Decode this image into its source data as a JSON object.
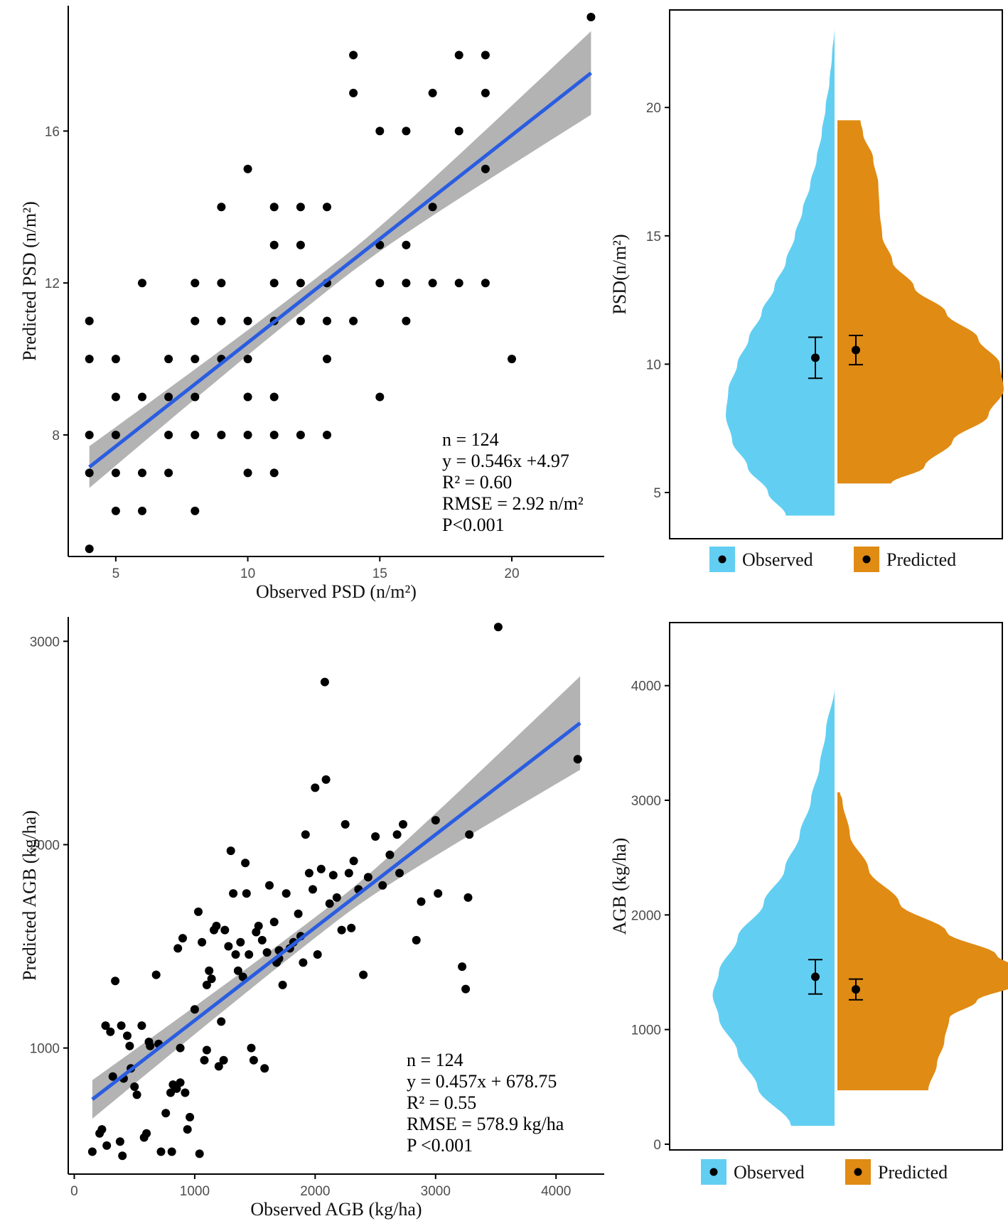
{
  "chart_data": [
    {
      "type": "scatter",
      "panel": "top-left",
      "xlabel": "Observed PSD (n/m²)",
      "ylabel": "Predicted PSD (n/m²)",
      "xlim": [
        3.2,
        23.5
      ],
      "ylim": [
        4.8,
        19.3
      ],
      "xticks": [
        5,
        10,
        15,
        20
      ],
      "yticks": [
        8,
        12,
        16
      ],
      "grid": false,
      "points": [
        [
          4,
          11
        ],
        [
          4,
          10
        ],
        [
          4,
          8
        ],
        [
          4,
          7
        ],
        [
          4,
          5
        ],
        [
          5,
          10
        ],
        [
          5,
          9
        ],
        [
          5,
          8
        ],
        [
          5,
          7
        ],
        [
          5,
          6
        ],
        [
          6,
          12
        ],
        [
          6,
          9
        ],
        [
          6,
          7
        ],
        [
          6,
          6
        ],
        [
          7,
          10
        ],
        [
          7,
          9
        ],
        [
          7,
          8
        ],
        [
          7,
          7
        ],
        [
          8,
          12
        ],
        [
          8,
          11
        ],
        [
          8,
          10
        ],
        [
          8,
          9
        ],
        [
          8,
          8
        ],
        [
          8,
          6
        ],
        [
          9,
          14
        ],
        [
          9,
          12
        ],
        [
          9,
          11
        ],
        [
          9,
          10
        ],
        [
          9,
          8
        ],
        [
          10,
          15
        ],
        [
          10,
          11
        ],
        [
          10,
          10
        ],
        [
          10,
          9
        ],
        [
          10,
          8
        ],
        [
          10,
          7
        ],
        [
          11,
          14
        ],
        [
          11,
          13
        ],
        [
          11,
          12
        ],
        [
          11,
          11
        ],
        [
          11,
          9
        ],
        [
          11,
          8
        ],
        [
          11,
          7
        ],
        [
          12,
          14
        ],
        [
          12,
          13
        ],
        [
          12,
          12
        ],
        [
          12,
          11
        ],
        [
          12,
          8
        ],
        [
          13,
          14
        ],
        [
          13,
          12
        ],
        [
          13,
          11
        ],
        [
          13,
          10
        ],
        [
          13,
          8
        ],
        [
          14,
          18
        ],
        [
          14,
          17
        ],
        [
          14,
          11
        ],
        [
          15,
          16
        ],
        [
          15,
          13
        ],
        [
          15,
          12
        ],
        [
          15,
          9
        ],
        [
          16,
          16
        ],
        [
          16,
          13
        ],
        [
          16,
          12
        ],
        [
          16,
          11
        ],
        [
          17,
          17
        ],
        [
          17,
          14
        ],
        [
          17,
          12
        ],
        [
          18,
          18
        ],
        [
          18,
          16
        ],
        [
          18,
          12
        ],
        [
          19,
          18
        ],
        [
          19,
          17
        ],
        [
          19,
          15
        ],
        [
          19,
          12
        ],
        [
          20,
          10
        ],
        [
          23,
          19
        ]
      ],
      "fit": {
        "slope": 0.546,
        "intercept": 4.97,
        "x_range": [
          4,
          23
        ],
        "ci_halfwidth_at_ends": [
          0.55,
          1.1
        ],
        "ci_halfwidth_at_center": 0.28,
        "line_color": "#2a5de0",
        "band_color": "#b3b3b3"
      },
      "annotations": [
        "n = 124",
        "y = 0.546x +4.97",
        "R² = 0.60",
        "RMSE = 2.92 n/m²",
        "P<0.001"
      ]
    },
    {
      "type": "violin",
      "panel": "top-right",
      "ylabel": "PSD(n/m²)",
      "ylim": [
        3.2,
        23.8
      ],
      "yticks": [
        5,
        10,
        15,
        20
      ],
      "legend": [
        "Observed",
        "Predicted"
      ],
      "colors": {
        "observed": "#62cff2",
        "predicted": "#e08b14"
      },
      "observed": {
        "min": 4.1,
        "max": 23.1,
        "mean": 10.25,
        "err_low": 9.45,
        "err_high": 11.05,
        "profile": [
          [
            4.1,
            0.38
          ],
          [
            5,
            0.52
          ],
          [
            6,
            0.68
          ],
          [
            7,
            0.8
          ],
          [
            8,
            0.85
          ],
          [
            9,
            0.83
          ],
          [
            10,
            0.76
          ],
          [
            11,
            0.67
          ],
          [
            12,
            0.57
          ],
          [
            13,
            0.47
          ],
          [
            14,
            0.38
          ],
          [
            15,
            0.31
          ],
          [
            16,
            0.25
          ],
          [
            17,
            0.19
          ],
          [
            18,
            0.14
          ],
          [
            19,
            0.1
          ],
          [
            20,
            0.07
          ],
          [
            21,
            0.04
          ],
          [
            22,
            0.02
          ],
          [
            23.1,
            0.0
          ]
        ]
      },
      "predicted": {
        "min": 5.35,
        "max": 19.5,
        "mean": 10.55,
        "err_low": 9.98,
        "err_high": 11.12,
        "profile": [
          [
            5.35,
            0.42
          ],
          [
            6,
            0.68
          ],
          [
            7,
            0.9
          ],
          [
            8,
            1.18
          ],
          [
            9,
            1.3
          ],
          [
            10,
            1.27
          ],
          [
            11,
            1.1
          ],
          [
            12,
            0.85
          ],
          [
            13,
            0.6
          ],
          [
            14,
            0.43
          ],
          [
            15,
            0.35
          ],
          [
            16,
            0.33
          ],
          [
            17,
            0.32
          ],
          [
            18,
            0.28
          ],
          [
            19,
            0.2
          ],
          [
            19.5,
            0.18
          ]
        ]
      }
    },
    {
      "type": "scatter",
      "panel": "bottom-left",
      "xlabel": "Observed AGB (kg/ha)",
      "ylabel": "Predicted AGB (kg/ha)",
      "xlim": [
        -50,
        4400
      ],
      "ylim": [
        380,
        3120
      ],
      "xticks": [
        0,
        1000,
        2000,
        3000,
        4000
      ],
      "yticks": [
        1000,
        2000,
        3000
      ],
      "grid": false,
      "points": [
        [
          150,
          490
        ],
        [
          210,
          580
        ],
        [
          230,
          600
        ],
        [
          270,
          520
        ],
        [
          300,
          1080
        ],
        [
          320,
          860
        ],
        [
          340,
          1330
        ],
        [
          380,
          540
        ],
        [
          390,
          1110
        ],
        [
          400,
          470
        ],
        [
          410,
          850
        ],
        [
          440,
          1060
        ],
        [
          460,
          1010
        ],
        [
          470,
          900
        ],
        [
          500,
          810
        ],
        [
          520,
          770
        ],
        [
          560,
          1110
        ],
        [
          580,
          560
        ],
        [
          600,
          580
        ],
        [
          620,
          1030
        ],
        [
          630,
          1010
        ],
        [
          680,
          1360
        ],
        [
          720,
          490
        ],
        [
          760,
          680
        ],
        [
          800,
          780
        ],
        [
          810,
          490
        ],
        [
          820,
          820
        ],
        [
          850,
          800
        ],
        [
          860,
          1490
        ],
        [
          880,
          830
        ],
        [
          900,
          1540
        ],
        [
          920,
          780
        ],
        [
          940,
          600
        ],
        [
          960,
          660
        ],
        [
          1000,
          1190
        ],
        [
          1030,
          1670
        ],
        [
          1040,
          480
        ],
        [
          1060,
          1520
        ],
        [
          1080,
          940
        ],
        [
          1100,
          1310
        ],
        [
          1120,
          1380
        ],
        [
          1140,
          1340
        ],
        [
          1160,
          1580
        ],
        [
          1180,
          1600
        ],
        [
          1200,
          910
        ],
        [
          1220,
          1130
        ],
        [
          1250,
          1580
        ],
        [
          1280,
          1500
        ],
        [
          1300,
          1970
        ],
        [
          1320,
          1760
        ],
        [
          1340,
          1460
        ],
        [
          1360,
          1380
        ],
        [
          1380,
          1520
        ],
        [
          1400,
          1350
        ],
        [
          1420,
          1910
        ],
        [
          1430,
          1760
        ],
        [
          1450,
          1460
        ],
        [
          1470,
          1000
        ],
        [
          1490,
          940
        ],
        [
          1510,
          1570
        ],
        [
          1530,
          1600
        ],
        [
          1560,
          1530
        ],
        [
          1580,
          900
        ],
        [
          1600,
          1470
        ],
        [
          1620,
          1800
        ],
        [
          1660,
          1620
        ],
        [
          1680,
          1420
        ],
        [
          1700,
          1480
        ],
        [
          1730,
          1310
        ],
        [
          1760,
          1760
        ],
        [
          1790,
          1490
        ],
        [
          1820,
          1520
        ],
        [
          1860,
          1660
        ],
        [
          1880,
          1550
        ],
        [
          1920,
          2050
        ],
        [
          1950,
          1860
        ],
        [
          1980,
          1780
        ],
        [
          2000,
          2280
        ],
        [
          2020,
          1460
        ],
        [
          2050,
          1880
        ],
        [
          2080,
          2800
        ],
        [
          2090,
          2320
        ],
        [
          2120,
          1710
        ],
        [
          2150,
          1850
        ],
        [
          2180,
          1740
        ],
        [
          2220,
          1580
        ],
        [
          2250,
          2100
        ],
        [
          2280,
          1860
        ],
        [
          2320,
          1920
        ],
        [
          2360,
          1780
        ],
        [
          2400,
          1360
        ],
        [
          2440,
          1840
        ],
        [
          2500,
          2040
        ],
        [
          2560,
          1800
        ],
        [
          2620,
          1950
        ],
        [
          2680,
          2050
        ],
        [
          2700,
          1860
        ],
        [
          2730,
          2100
        ],
        [
          2840,
          1530
        ],
        [
          2880,
          1720
        ],
        [
          3000,
          2120
        ],
        [
          3020,
          1760
        ],
        [
          3220,
          1400
        ],
        [
          3250,
          1290
        ],
        [
          3270,
          1740
        ],
        [
          3280,
          2050
        ],
        [
          3520,
          3070
        ],
        [
          4180,
          2420
        ],
        [
          260,
          1110
        ],
        [
          700,
          1020
        ],
        [
          1100,
          990
        ],
        [
          1700,
          1440
        ],
        [
          1900,
          1420
        ],
        [
          2300,
          1590
        ],
        [
          1240,
          940
        ],
        [
          880,
          1000
        ]
      ],
      "fit": {
        "slope": 0.457,
        "intercept": 678.75,
        "x_range": [
          150,
          4200
        ],
        "ci_halfwidth_at_ends": [
          95,
          230
        ],
        "ci_halfwidth_at_center": 50,
        "line_color": "#2a5de0",
        "band_color": "#b3b3b3"
      },
      "annotations": [
        "n = 124",
        "y = 0.457x + 678.75",
        "R² = 0.55",
        "RMSE = 578.9 kg/ha",
        "P <0.001"
      ]
    },
    {
      "type": "violin",
      "panel": "bottom-right",
      "ylabel": "AGB (kg/ha)",
      "ylim": [
        -50,
        4550
      ],
      "yticks": [
        0,
        1000,
        2000,
        3000,
        4000
      ],
      "legend": [
        "Observed",
        "Predicted"
      ],
      "colors": {
        "observed": "#62cff2",
        "predicted": "#e08b14"
      },
      "observed": {
        "min": 160,
        "max": 3980,
        "mean": 1460,
        "err_low": 1310,
        "err_high": 1610,
        "profile": [
          [
            160,
            0.35
          ],
          [
            500,
            0.62
          ],
          [
            800,
            0.78
          ],
          [
            1100,
            0.93
          ],
          [
            1300,
            0.98
          ],
          [
            1500,
            0.93
          ],
          [
            1800,
            0.78
          ],
          [
            2100,
            0.57
          ],
          [
            2400,
            0.4
          ],
          [
            2700,
            0.28
          ],
          [
            3000,
            0.19
          ],
          [
            3300,
            0.12
          ],
          [
            3600,
            0.07
          ],
          [
            3980,
            0.0
          ]
        ]
      },
      "predicted": {
        "min": 470,
        "max": 3070,
        "mean": 1350,
        "err_low": 1260,
        "err_high": 1440,
        "profile": [
          [
            470,
            0.73
          ],
          [
            700,
            0.8
          ],
          [
            900,
            0.86
          ],
          [
            1100,
            0.9
          ],
          [
            1250,
            1.12
          ],
          [
            1400,
            1.45
          ],
          [
            1500,
            1.52
          ],
          [
            1650,
            1.28
          ],
          [
            1850,
            0.88
          ],
          [
            2100,
            0.5
          ],
          [
            2400,
            0.25
          ],
          [
            2700,
            0.1
          ],
          [
            3000,
            0.04
          ],
          [
            3070,
            0.02
          ]
        ]
      }
    }
  ]
}
